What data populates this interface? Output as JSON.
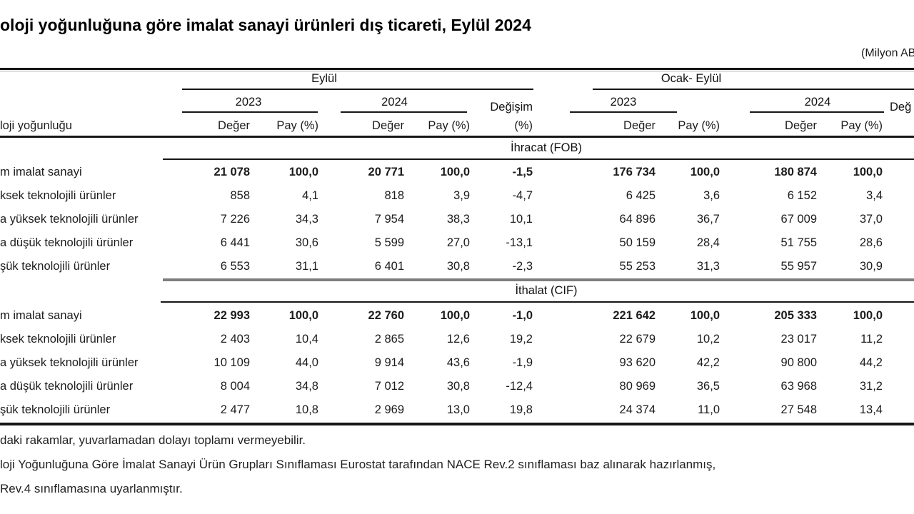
{
  "title": "oloji yoğunluğuna göre imalat sanayi ürünleri dış ticareti, Eylül 2024",
  "unit_note": "(Milyon AB",
  "table": {
    "row_dimension_header": "loji yoğunluğu",
    "period_groups": {
      "left": "Eylül",
      "right": "Ocak- Eylül"
    },
    "year_headers": {
      "left_2023": "2023",
      "left_2024": "2024",
      "right_2023": "2023",
      "right_2024": "2024"
    },
    "measure_headers": {
      "deger": "Değer",
      "pay": "Pay (%)"
    },
    "change_header": {
      "line1": "Değişim",
      "line2": "(%)"
    },
    "change_header_right_partial": "Değ",
    "cropped_change_value_partial": "-",
    "sections": [
      {
        "name": "İhracat (FOB)",
        "rows": [
          {
            "label": "m imalat sanayi",
            "bold": true,
            "values": [
              "21 078",
              "100,0",
              "20 771",
              "100,0",
              "-1,5",
              "176 734",
              "100,0",
              "180 874",
              "100,0"
            ]
          },
          {
            "label": "ksek teknolojili ürünler",
            "bold": false,
            "values": [
              "858",
              "4,1",
              "818",
              "3,9",
              "-4,7",
              "6 425",
              "3,6",
              "6 152",
              "3,4"
            ]
          },
          {
            "label": "a yüksek teknolojili ürünler",
            "bold": false,
            "values": [
              "7 226",
              "34,3",
              "7 954",
              "38,3",
              "10,1",
              "64 896",
              "36,7",
              "67 009",
              "37,0"
            ]
          },
          {
            "label": "a düşük teknolojili ürünler",
            "bold": false,
            "values": [
              "6 441",
              "30,6",
              "5 599",
              "27,0",
              "-13,1",
              "50 159",
              "28,4",
              "51 755",
              "28,6"
            ]
          },
          {
            "label": "şük teknolojili ürünler",
            "bold": false,
            "values": [
              "6 553",
              "31,1",
              "6 401",
              "30,8",
              "-2,3",
              "55 253",
              "31,3",
              "55 957",
              "30,9"
            ]
          }
        ]
      },
      {
        "name": "İthalat (CIF)",
        "rows": [
          {
            "label": "m imalat sanayi",
            "bold": true,
            "values": [
              "22 993",
              "100,0",
              "22 760",
              "100,0",
              "-1,0",
              "221 642",
              "100,0",
              "205 333",
              "100,0"
            ]
          },
          {
            "label": "ksek teknolojili ürünler",
            "bold": false,
            "values": [
              "2 403",
              "10,4",
              "2 865",
              "12,6",
              "19,2",
              "22 679",
              "10,2",
              "23 017",
              "11,2"
            ]
          },
          {
            "label": "a yüksek teknolojili ürünler",
            "bold": false,
            "values": [
              "10 109",
              "44,0",
              "9 914",
              "43,6",
              "-1,9",
              "93 620",
              "42,2",
              "90 800",
              "44,2"
            ]
          },
          {
            "label": "a düşük teknolojili ürünler",
            "bold": false,
            "values": [
              "8 004",
              "34,8",
              "7 012",
              "30,8",
              "-12,4",
              "80 969",
              "36,5",
              "63 968",
              "31,2"
            ]
          },
          {
            "label": "şük teknolojili ürünler",
            "bold": false,
            "values": [
              "2 477",
              "10,8",
              "2 969",
              "13,0",
              "19,8",
              "24 374",
              "11,0",
              "27 548",
              "13,4"
            ]
          }
        ]
      }
    ]
  },
  "footnotes": [
    "daki rakamlar, yuvarlamadan dolayı toplamı vermeyebilir.",
    "loji Yoğunluğuna Göre İmalat Sanayi Ürün Grupları Sınıflaması Eurostat tarafından NACE Rev.2 sınıflaması baz alınarak hazırlanmış,",
    "Rev.4 sınıflamasına uyarlanmıştır."
  ]
}
